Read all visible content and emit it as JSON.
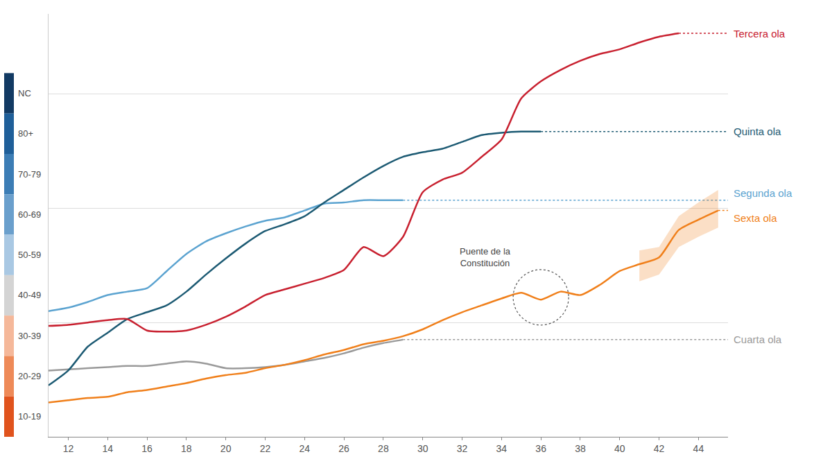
{
  "chart_data": {
    "type": "line",
    "x": [
      11,
      12,
      13,
      14,
      15,
      16,
      17,
      18,
      19,
      20,
      21,
      22,
      23,
      24,
      25,
      26,
      27,
      28,
      29,
      30,
      31,
      32,
      33,
      34,
      35,
      36,
      37,
      38,
      39,
      40,
      41,
      42,
      43,
      44,
      45
    ],
    "xlim": [
      11,
      45.5
    ],
    "xticks": [
      12,
      14,
      16,
      18,
      20,
      22,
      24,
      26,
      28,
      30,
      32,
      34,
      36,
      38,
      40,
      42,
      44
    ],
    "ylim": [
      0,
      3.7
    ],
    "yticks": [
      0,
      1,
      2,
      3
    ],
    "grid": true,
    "tick_labels": "x",
    "series": [
      {
        "name": "Cuarta ola",
        "color": "#9a9a9a",
        "line_style": "solid",
        "values": [
          0.58,
          0.59,
          0.6,
          0.61,
          0.62,
          0.62,
          0.64,
          0.66,
          0.64,
          0.6,
          0.6,
          0.61,
          0.63,
          0.66,
          0.69,
          0.73,
          0.78,
          0.82,
          0.85,
          null,
          null,
          null,
          null,
          null,
          null,
          null,
          null,
          null,
          null,
          null,
          null,
          null,
          null,
          null,
          null
        ]
      },
      {
        "name": "Segunda ola",
        "color": "#5ba3d0",
        "line_style": "solid",
        "values": [
          1.1,
          1.13,
          1.18,
          1.24,
          1.27,
          1.3,
          1.45,
          1.6,
          1.71,
          1.78,
          1.84,
          1.89,
          1.92,
          1.98,
          2.04,
          2.05,
          2.07,
          2.07,
          2.07,
          null,
          null,
          null,
          null,
          null,
          null,
          null,
          null,
          null,
          null,
          null,
          null,
          null,
          null,
          null,
          null
        ]
      },
      {
        "name": "Quinta ola",
        "color": "#1c5a73",
        "line_style": "solid",
        "values": [
          0.45,
          0.58,
          0.79,
          0.91,
          1.03,
          1.09,
          1.15,
          1.27,
          1.42,
          1.56,
          1.69,
          1.8,
          1.86,
          1.93,
          2.05,
          2.16,
          2.27,
          2.37,
          2.45,
          2.49,
          2.52,
          2.58,
          2.64,
          2.66,
          2.67,
          2.67,
          null,
          null,
          null,
          null,
          null,
          null,
          null,
          null,
          null
        ]
      },
      {
        "name": "Tercera ola",
        "color": "#c8202f",
        "line_style": "solid",
        "values": [
          0.97,
          0.98,
          1.0,
          1.02,
          1.03,
          0.93,
          0.92,
          0.93,
          0.98,
          1.05,
          1.14,
          1.24,
          1.29,
          1.34,
          1.39,
          1.46,
          1.66,
          1.58,
          1.75,
          2.14,
          2.25,
          2.31,
          2.45,
          2.6,
          2.96,
          3.11,
          3.21,
          3.29,
          3.35,
          3.39,
          3.45,
          3.5,
          3.53,
          null,
          null
        ]
      },
      {
        "name": "Sexta ola",
        "color": "#f07f1a",
        "line_style": "solid",
        "values": [
          0.3,
          0.32,
          0.34,
          0.35,
          0.39,
          0.41,
          0.44,
          0.47,
          0.51,
          0.54,
          0.56,
          0.6,
          0.63,
          0.67,
          0.72,
          0.76,
          0.81,
          0.84,
          0.88,
          0.94,
          1.02,
          1.09,
          1.15,
          1.21,
          1.26,
          1.2,
          1.27,
          1.24,
          1.33,
          1.45,
          1.51,
          1.57,
          1.81,
          1.9,
          1.98
        ],
        "band": {
          "x": [
            41,
            42,
            43,
            44,
            45
          ],
          "lower": [
            1.36,
            1.42,
            1.66,
            1.75,
            1.83
          ],
          "upper": [
            1.63,
            1.66,
            1.93,
            2.05,
            2.16
          ]
        }
      }
    ],
    "annotations": [
      {
        "text": "Puente de la Constitución",
        "x": 36,
        "y": 1.22
      }
    ],
    "age_groups": {
      "labels": [
        "NC",
        "80+",
        "70-79",
        "60-69",
        "50-59",
        "40-49",
        "30-39",
        "20-29",
        "10-19"
      ],
      "colors": [
        "#123a63",
        "#1f5f99",
        "#3c7db5",
        "#6a9fcc",
        "#a9c8e3",
        "#d4d4d4",
        "#f5b89a",
        "#ee8a58",
        "#e0531d"
      ]
    }
  }
}
